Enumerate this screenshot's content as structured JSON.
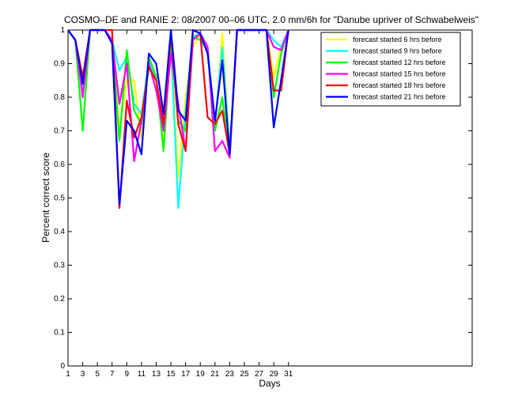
{
  "chart_data": {
    "type": "line",
    "title": "COSMO–DE and RANIE 2: 08/2007 00–06 UTC, 2.0 mm/6h for \"Danube upriver of Schwabelweis\"",
    "xlabel": "Days",
    "ylabel": "Percent correct score",
    "xlim": [
      1,
      56
    ],
    "ylim": [
      0,
      1
    ],
    "xticks": [
      1,
      3,
      5,
      7,
      9,
      11,
      13,
      15,
      17,
      19,
      21,
      23,
      25,
      27,
      29,
      31
    ],
    "yticks": [
      0,
      0.1,
      0.2,
      0.3,
      0.4,
      0.5,
      0.6,
      0.7,
      0.8,
      0.9,
      1
    ],
    "ytick_labels": [
      "0",
      "0.1",
      "0.2",
      "0.3",
      "0.4",
      "0.5",
      "0.6",
      "0.7",
      "0.8",
      "0.9",
      "1"
    ],
    "legend_position": "top-right",
    "x": [
      1,
      2,
      3,
      4,
      5,
      6,
      7,
      8,
      9,
      10,
      11,
      12,
      13,
      14,
      15,
      16,
      17,
      18,
      19,
      20,
      21,
      22,
      23,
      24,
      25,
      26,
      27,
      28,
      29,
      30,
      31
    ],
    "series": [
      {
        "name": "forecast started 6 hrs before",
        "color": "#ffff00",
        "values": [
          1,
          0.97,
          0.8,
          1,
          1,
          1,
          0.96,
          0.7,
          0.85,
          0.85,
          0.68,
          0.9,
          0.85,
          0.66,
          0.95,
          0.56,
          0.8,
          0.95,
          0.99,
          0.95,
          0.7,
          0.99,
          0.65,
          1,
          1,
          1,
          1,
          1,
          0.86,
          0.95,
          1
        ]
      },
      {
        "name": "forecast started 9 hrs before",
        "color": "#00ffff",
        "values": [
          1,
          0.97,
          0.83,
          1,
          1,
          1,
          0.97,
          0.88,
          0.92,
          0.78,
          0.75,
          0.91,
          0.85,
          0.7,
          0.96,
          0.47,
          0.76,
          0.98,
          0.99,
          0.95,
          0.72,
          0.95,
          0.64,
          1,
          1,
          1,
          1,
          1,
          0.97,
          0.95,
          1
        ]
      },
      {
        "name": "forecast started 12 hrs before",
        "color": "#00ff00",
        "values": [
          1,
          0.97,
          0.7,
          1,
          1,
          1,
          0.97,
          0.67,
          0.94,
          0.76,
          0.72,
          0.92,
          0.86,
          0.64,
          0.97,
          0.73,
          0.7,
          0.98,
          0.97,
          0.94,
          0.7,
          0.8,
          0.63,
          1,
          1,
          1,
          1,
          1,
          0.8,
          0.93,
          1
        ]
      },
      {
        "name": "forecast started 15 hrs before",
        "color": "#ff00ff",
        "values": [
          1,
          0.97,
          0.8,
          1,
          1,
          1,
          0.97,
          0.78,
          0.9,
          0.61,
          0.73,
          0.9,
          0.82,
          0.7,
          0.93,
          0.78,
          0.64,
          0.97,
          0.99,
          0.95,
          0.64,
          0.67,
          0.62,
          1,
          1,
          1,
          1,
          1,
          0.95,
          0.94,
          1
        ]
      },
      {
        "name": "forecast started 18 hrs before",
        "color": "#ff0000",
        "values": [
          1,
          0.97,
          0.86,
          1,
          1,
          1,
          1,
          0.47,
          0.79,
          0.68,
          0.74,
          0.89,
          0.85,
          0.72,
          0.99,
          0.72,
          0.64,
          1,
          0.99,
          0.74,
          0.72,
          0.76,
          0.63,
          1,
          1,
          1,
          1,
          1,
          0.82,
          0.82,
          1
        ]
      },
      {
        "name": "forecast started 21 hrs before",
        "color": "#0000ff",
        "values": [
          1,
          0.97,
          0.84,
          1,
          1,
          1,
          0.96,
          0.48,
          0.73,
          0.7,
          0.63,
          0.93,
          0.9,
          0.75,
          1,
          0.76,
          0.73,
          1,
          0.99,
          0.93,
          0.73,
          0.91,
          0.63,
          1,
          1,
          1,
          1,
          1,
          0.71,
          0.85,
          1
        ]
      }
    ]
  }
}
